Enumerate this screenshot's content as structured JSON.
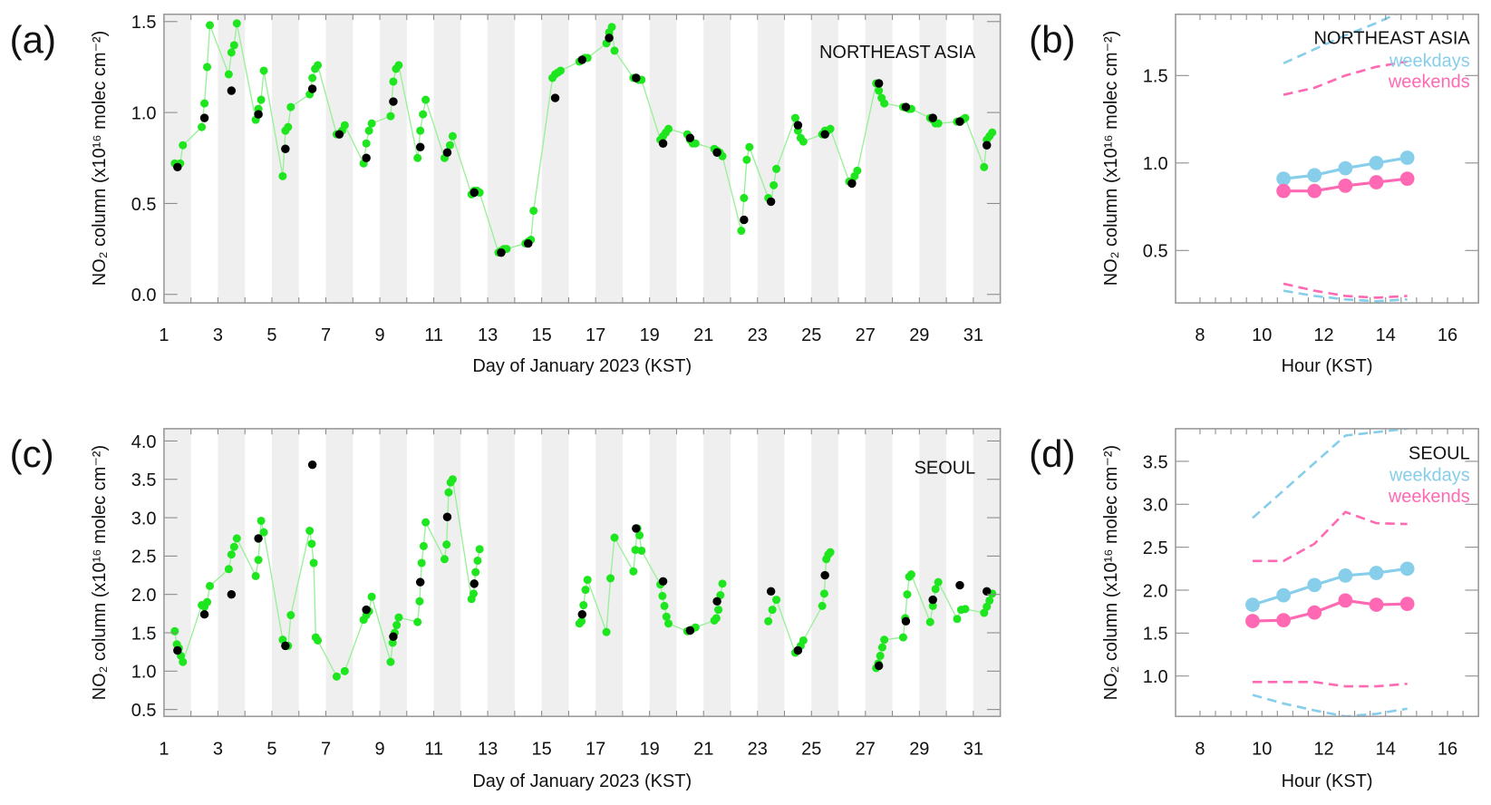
{
  "figure": {
    "panel_labels": [
      "(a)",
      "(b)",
      "(c)",
      "(d)"
    ]
  },
  "colors": {
    "hourly": "#1ee61e",
    "hourly_line": "#9af09a",
    "daily_mean": "#000000",
    "weekdays": "#87ceeb",
    "weekends": "#ff69b4",
    "stripe": "#efefef"
  },
  "chart_data": [
    {
      "type": "scatter",
      "panel": "(a)",
      "region": "NORTHEAST ASIA",
      "xlabel": "Day of January 2023 (KST)",
      "ylabel": "NO₂ column (x10¹⁶ molec cm⁻²)",
      "xlim": [
        1,
        32
      ],
      "ylim": [
        -0.047,
        1.54
      ],
      "xticks": [
        1,
        3,
        5,
        7,
        9,
        11,
        13,
        15,
        17,
        19,
        21,
        23,
        25,
        27,
        29,
        31
      ],
      "yticks": [
        0.0,
        0.5,
        1.0,
        1.5
      ],
      "ytick_labels": [
        "0.0",
        "0.5",
        "1.0",
        "1.5"
      ],
      "days": [
        1,
        2,
        3,
        4,
        5,
        6,
        7,
        8,
        9,
        10,
        11,
        12,
        13,
        14,
        15,
        16,
        17,
        18,
        19,
        20,
        21,
        22,
        23,
        24,
        25,
        26,
        27,
        28,
        29,
        30,
        31
      ],
      "daily_mean": [
        0.7,
        0.97,
        1.12,
        0.99,
        0.8,
        1.13,
        0.88,
        0.75,
        1.06,
        0.81,
        0.78,
        0.56,
        0.23,
        0.28,
        1.08,
        1.29,
        1.41,
        1.19,
        0.83,
        0.86,
        0.78,
        0.41,
        0.51,
        0.93,
        0.88,
        0.61,
        1.16,
        1.03,
        0.97,
        0.95,
        0.82
      ],
      "hourly": [
        [
          0.72,
          0.7,
          0.72,
          0.82
        ],
        [
          0.92,
          1.05,
          1.25,
          1.48
        ],
        [
          1.21,
          1.33,
          1.37,
          1.49
        ],
        [
          0.96,
          1.02,
          1.07,
          1.23
        ],
        [
          0.65,
          0.9,
          0.92,
          1.03
        ],
        [
          1.1,
          1.19,
          1.24,
          1.26
        ],
        [
          0.88,
          0.88,
          0.9,
          0.93
        ],
        [
          0.72,
          0.83,
          0.9,
          0.94
        ],
        [
          0.98,
          1.17,
          1.24,
          1.26
        ],
        [
          0.75,
          0.9,
          0.99,
          1.07
        ],
        [
          0.75,
          0.78,
          0.82,
          0.87
        ],
        [
          0.55,
          0.57,
          0.57,
          0.56
        ],
        [
          0.23,
          0.24,
          0.25,
          0.25
        ],
        [
          0.28,
          0.29,
          0.3,
          0.46
        ],
        [
          1.19,
          1.21,
          1.22,
          1.23
        ],
        [
          1.28,
          1.29,
          1.3,
          1.3
        ],
        [
          1.38,
          1.44,
          1.47,
          1.34
        ],
        [
          1.19,
          1.19,
          1.18,
          1.18
        ],
        [
          0.85,
          0.87,
          0.89,
          0.91
        ],
        [
          0.88,
          0.85,
          0.83,
          0.83
        ],
        [
          0.8,
          0.79,
          0.78,
          0.76
        ],
        [
          0.35,
          0.53,
          0.74,
          0.81
        ],
        [
          0.53,
          0.51,
          0.6,
          0.69
        ],
        [
          0.97,
          0.9,
          0.86,
          0.84
        ],
        [
          0.88,
          0.9,
          0.9,
          0.91
        ],
        [
          0.62,
          0.62,
          0.65,
          0.68
        ],
        [
          1.16,
          1.12,
          1.08,
          1.05
        ],
        [
          1.03,
          1.03,
          1.02,
          1.02
        ],
        [
          0.97,
          0.96,
          0.94,
          0.94
        ],
        [
          0.95,
          0.95,
          0.96,
          0.97
        ],
        [
          0.7,
          0.85,
          0.87,
          0.89
        ]
      ]
    },
    {
      "type": "line",
      "panel": "(b)",
      "region": "NORTHEAST ASIA",
      "xlabel": "Hour (KST)",
      "ylabel": "NO₂ column (x10¹⁶ molec cm⁻²)",
      "xlim": [
        7.21,
        17.0
      ],
      "ylim": [
        0.2,
        1.85
      ],
      "xticks": [
        8,
        10,
        12,
        14,
        16
      ],
      "yticks": [
        0.5,
        1.0,
        1.5
      ],
      "ytick_labels": [
        "0.5",
        "1.0",
        "1.5"
      ],
      "legend": [
        "weekdays",
        "weekends"
      ],
      "legend_position": "top-right",
      "x": [
        10.7,
        11.7,
        12.7,
        13.7,
        14.7
      ],
      "series": [
        {
          "name": "weekdays",
          "values": [
            0.91,
            0.93,
            0.97,
            1.0,
            1.03
          ],
          "upper": [
            1.57,
            1.65,
            1.73,
            1.8,
            1.88
          ],
          "lower": [
            0.27,
            0.24,
            0.22,
            0.21,
            0.22
          ]
        },
        {
          "name": "weekends",
          "values": [
            0.84,
            0.84,
            0.87,
            0.89,
            0.91
          ],
          "upper": [
            1.39,
            1.43,
            1.5,
            1.55,
            1.58
          ],
          "lower": [
            0.31,
            0.27,
            0.24,
            0.23,
            0.24
          ]
        }
      ]
    },
    {
      "type": "scatter",
      "panel": "(c)",
      "region": "SEOUL",
      "xlabel": "Day of January 2023 (KST)",
      "ylabel": "NO₂ column (x10¹⁶ molec cm⁻²)",
      "xlim": [
        1,
        32
      ],
      "ylim": [
        0.41,
        4.16
      ],
      "xticks": [
        1,
        3,
        5,
        7,
        9,
        11,
        13,
        15,
        17,
        19,
        21,
        23,
        25,
        27,
        29,
        31
      ],
      "yticks": [
        0.5,
        1.0,
        1.5,
        2.0,
        2.5,
        3.0,
        3.5,
        4.0
      ],
      "ytick_labels": [
        "0.5",
        "1.0",
        "1.5",
        "2.0",
        "2.5",
        "3.0",
        "3.5",
        "4.0"
      ],
      "days": [
        1,
        2,
        3,
        4,
        5,
        6,
        7,
        8,
        9,
        10,
        11,
        12,
        16,
        17,
        18,
        19,
        20,
        21,
        23,
        24,
        25,
        27,
        28,
        29,
        30,
        31
      ],
      "daily_mean": [
        1.27,
        1.74,
        2.0,
        2.73,
        1.33,
        3.69,
        null,
        1.8,
        1.45,
        2.16,
        3.01,
        2.14,
        1.74,
        null,
        2.86,
        2.17,
        1.53,
        1.91,
        2.04,
        1.27,
        2.25,
        1.07,
        1.65,
        1.93,
        2.12,
        2.04
      ],
      "hourly": [
        [
          1.52,
          1.35,
          1.3,
          1.2,
          1.12
        ],
        [
          1.86,
          1.84,
          1.9,
          2.11
        ],
        [
          2.33,
          2.52,
          2.62,
          2.73
        ],
        [
          2.24,
          2.45,
          2.96,
          2.81
        ],
        [
          1.41,
          1.33,
          1.33,
          1.73
        ],
        [
          2.83,
          2.66,
          2.41,
          1.44,
          1.4
        ],
        [
          0.93,
          1.0
        ],
        [
          1.67,
          1.73,
          1.78,
          1.97
        ],
        [
          1.12,
          1.37,
          1.5,
          1.6,
          1.7
        ],
        [
          1.64,
          1.91,
          2.41,
          2.63,
          2.94
        ],
        [
          2.46,
          2.65,
          3.33,
          3.46,
          3.5
        ],
        [
          1.94,
          2.01,
          2.29,
          2.44,
          2.59
        ],
        [
          1.62,
          1.65,
          1.86,
          2.06,
          2.19
        ],
        [
          1.51,
          2.21,
          2.74
        ],
        [
          2.3,
          2.58,
          2.86,
          2.77,
          2.57
        ],
        [
          2.13,
          1.98,
          1.85,
          1.71,
          1.62
        ],
        [
          1.52,
          1.54,
          1.57
        ],
        [
          1.66,
          1.69,
          1.8,
          1.99,
          2.14
        ],
        [
          1.65,
          1.8,
          1.93
        ],
        [
          1.24,
          1.27,
          1.33,
          1.4
        ],
        [
          1.85,
          2.01,
          2.46,
          2.52,
          2.55
        ],
        [
          1.04,
          1.1,
          1.2,
          1.31,
          1.41
        ],
        [
          1.44,
          1.69,
          2.0,
          2.23,
          2.26
        ],
        [
          1.64,
          1.85,
          2.07,
          2.16
        ],
        [
          1.68,
          1.8,
          1.81
        ],
        [
          1.76,
          1.84,
          1.92,
          2.01
        ]
      ]
    },
    {
      "type": "line",
      "panel": "(d)",
      "region": "SEOUL",
      "xlabel": "Hour (KST)",
      "ylabel": "NO₂ column (x10¹⁶ molec cm⁻²)",
      "xlim": [
        7.21,
        17.0
      ],
      "ylim": [
        0.53,
        3.88
      ],
      "xticks": [
        8,
        10,
        12,
        14,
        16
      ],
      "yticks": [
        1.0,
        1.5,
        2.0,
        2.5,
        3.0,
        3.5
      ],
      "ytick_labels": [
        "1.0",
        "1.5",
        "2.0",
        "2.5",
        "3.0",
        "3.5"
      ],
      "legend": [
        "weekdays",
        "weekends"
      ],
      "legend_position": "top-right",
      "x": [
        9.7,
        10.7,
        11.7,
        12.7,
        13.7,
        14.7
      ],
      "series": [
        {
          "name": "weekdays",
          "values": [
            1.83,
            1.94,
            2.06,
            2.17,
            2.2,
            2.25
          ],
          "upper": [
            2.84,
            3.16,
            3.48,
            3.8,
            3.84,
            3.88
          ],
          "lower": [
            0.78,
            0.68,
            0.6,
            0.53,
            0.56,
            0.62
          ]
        },
        {
          "name": "weekends",
          "values": [
            1.64,
            1.65,
            1.74,
            1.88,
            1.83,
            1.84
          ],
          "upper": [
            2.34,
            2.34,
            2.54,
            2.91,
            2.78,
            2.77
          ],
          "lower": [
            0.93,
            0.93,
            0.93,
            0.88,
            0.88,
            0.91
          ]
        }
      ]
    }
  ]
}
